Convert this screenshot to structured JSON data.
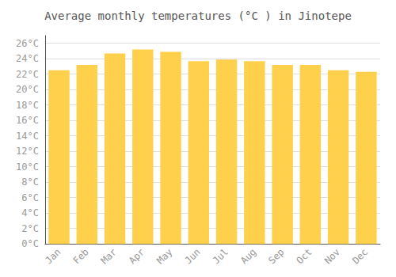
{
  "chart_data": {
    "type": "bar",
    "title": "Average monthly temperatures (°C ) in Jinotepe",
    "categories": [
      "Jan",
      "Feb",
      "Mar",
      "Apr",
      "May",
      "Jun",
      "Jul",
      "Aug",
      "Sep",
      "Oct",
      "Nov",
      "Dec"
    ],
    "values": [
      22.5,
      23.2,
      24.7,
      25.2,
      24.9,
      23.7,
      23.9,
      23.7,
      23.2,
      23.2,
      22.5,
      22.3
    ],
    "color": "#FFD04B",
    "ylim": [
      0,
      27
    ],
    "yticks": [
      {
        "value": 0,
        "label": "0°C"
      },
      {
        "value": 2,
        "label": "2°C"
      },
      {
        "value": 4,
        "label": "4°C"
      },
      {
        "value": 6,
        "label": "6°C"
      },
      {
        "value": 8,
        "label": "8°C"
      },
      {
        "value": 10,
        "label": "10°C"
      },
      {
        "value": 12,
        "label": "12°C"
      },
      {
        "value": 14,
        "label": "14°C"
      },
      {
        "value": 16,
        "label": "16°C"
      },
      {
        "value": 18,
        "label": "18°C"
      },
      {
        "value": 20,
        "label": "20°C"
      },
      {
        "value": 22,
        "label": "22°C"
      },
      {
        "value": 24,
        "label": "24°C"
      },
      {
        "value": 26,
        "label": "26°C"
      }
    ],
    "grid": true
  }
}
